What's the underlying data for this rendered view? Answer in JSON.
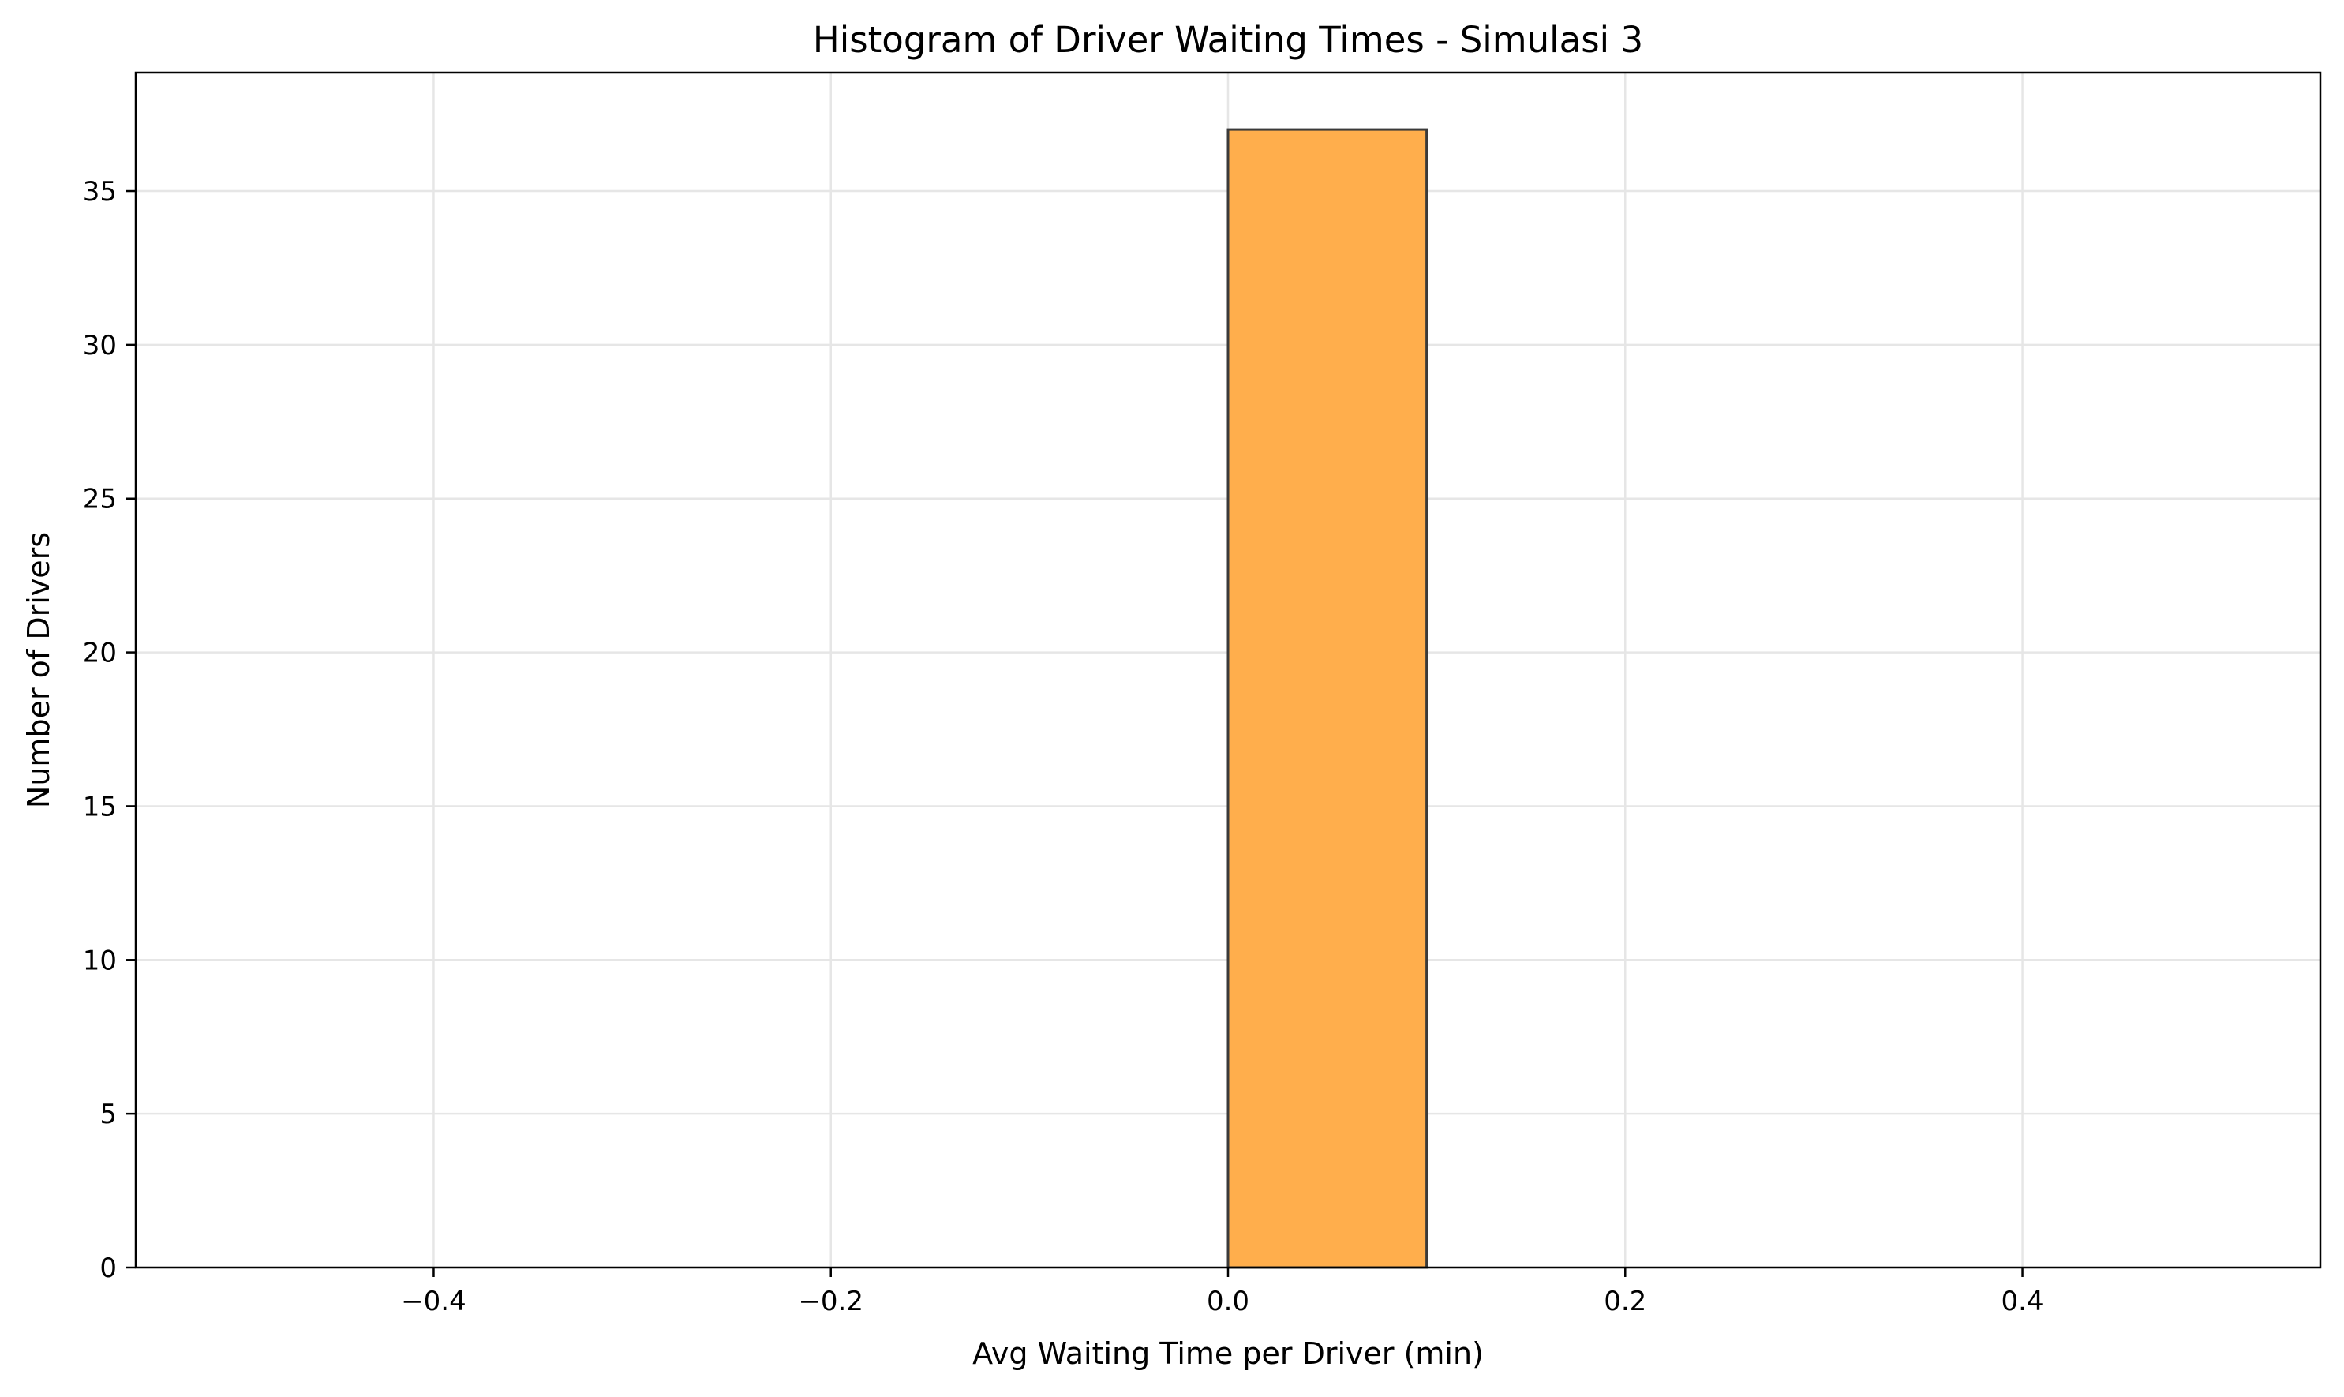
{
  "chart_data": {
    "type": "bar",
    "title": "Histogram of Driver Waiting Times - Simulasi 3",
    "xlabel": "Avg Waiting Time per Driver (min)",
    "ylabel": "Number of Drivers",
    "bins": [
      {
        "start": -0.5,
        "end": -0.4,
        "count": 0
      },
      {
        "start": -0.4,
        "end": -0.3,
        "count": 0
      },
      {
        "start": -0.3,
        "end": -0.2,
        "count": 0
      },
      {
        "start": -0.2,
        "end": -0.1,
        "count": 0
      },
      {
        "start": -0.1,
        "end": 0.0,
        "count": 0
      },
      {
        "start": 0.0,
        "end": 0.1,
        "count": 37
      },
      {
        "start": 0.1,
        "end": 0.2,
        "count": 0
      },
      {
        "start": 0.2,
        "end": 0.3,
        "count": 0
      },
      {
        "start": 0.3,
        "end": 0.4,
        "count": 0
      },
      {
        "start": 0.4,
        "end": 0.5,
        "count": 0
      }
    ],
    "xlim": [
      -0.55,
      0.55
    ],
    "ylim": [
      0,
      38.85
    ],
    "xticks": [
      -0.4,
      -0.2,
      0.0,
      0.2,
      0.4
    ],
    "xtick_labels": [
      "−0.4",
      "−0.2",
      "0.0",
      "0.2",
      "0.4"
    ],
    "yticks": [
      0,
      5,
      10,
      15,
      20,
      25,
      30,
      35
    ],
    "ytick_labels": [
      "0",
      "5",
      "10",
      "15",
      "20",
      "25",
      "30",
      "35"
    ],
    "grid": true,
    "colors": {
      "bar_fill": "#FFAE4C",
      "bar_edge": "#3a3a3a",
      "grid": "#e6e6e6",
      "axis": "#000000"
    }
  }
}
